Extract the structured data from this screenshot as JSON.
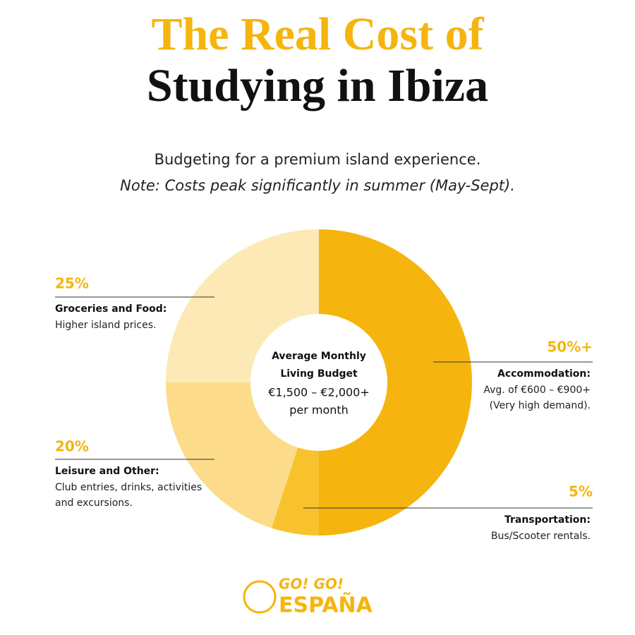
{
  "chart_data": {
    "type": "donut",
    "title": [
      "The Real Cost of",
      "Studying in Ibiza"
    ],
    "subtitle": "Budgeting for a premium island experience.",
    "note": "Note: Costs peak significantly in summer (May-Sept).",
    "center_label": [
      "Average Monthly",
      "Living Budget",
      "€1,500 – €2,000+",
      "per month"
    ],
    "categories": [
      "Accommodation:",
      "Transportation:",
      "Leisure and Other:",
      "Groceries and Food:"
    ],
    "descriptions": [
      [
        "Avg. of €600 – €900+",
        "(Very high demand)."
      ],
      [
        "Bus/Scooter rentals."
      ],
      [
        "Club entries, drinks, activities",
        "and excursions."
      ],
      [
        "Higher island prices."
      ]
    ],
    "values": [
      50,
      5,
      20,
      25
    ],
    "value_labels": [
      "50%+",
      "5%",
      "20%",
      "25%"
    ],
    "colors": [
      "#f5b50e",
      "#f8c22f",
      "#fcdc8b",
      "#fde9b6"
    ],
    "logo": [
      "GO! GO!",
      "ESPAÑA"
    ]
  }
}
